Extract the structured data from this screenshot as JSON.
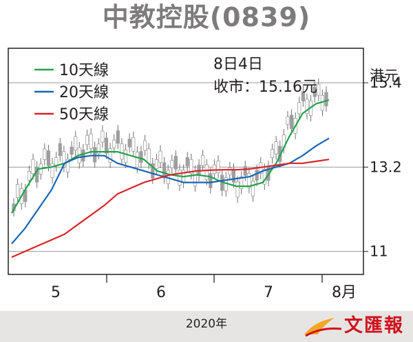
{
  "title": "中教控股(0839)",
  "annotation": {
    "date": "8日4日",
    "close": "收市：15.16元"
  },
  "unit": "港元",
  "footer_year": "2020年",
  "publisher": "文匯報",
  "colors": {
    "ma10": "#1fa34a",
    "ma20": "#1764b4",
    "ma50": "#d8232a",
    "up": "#f1a92e",
    "down": "#9e9e9e",
    "gridline": "#999999"
  },
  "chart_data": {
    "type": "line",
    "title": "中教控股(0839)",
    "ylabel": "港元",
    "xlabel": "2020年",
    "y_ticks": [
      11,
      13.2,
      15.4
    ],
    "ylim": [
      10.4,
      16.3
    ],
    "x_ticks": [
      "5",
      "6",
      "7",
      "8月"
    ],
    "grid": "horizontal",
    "legend_position": "top-left",
    "series": [
      {
        "name": "10天線",
        "color": "#1fa34a",
        "values": [
          12.0,
          12.6,
          13.15,
          13.2,
          13.3,
          13.5,
          13.6,
          13.6,
          13.6,
          13.5,
          13.4,
          13.1,
          13.0,
          12.95,
          13.0,
          12.95,
          12.8,
          12.7,
          12.7,
          12.8,
          13.3,
          14.0,
          14.6,
          14.85,
          14.95
        ]
      },
      {
        "name": "20天線",
        "color": "#1764b4",
        "values": [
          11.2,
          11.6,
          12.1,
          12.6,
          13.3,
          13.45,
          13.5,
          13.5,
          13.3,
          13.2,
          13.1,
          13.0,
          12.9,
          12.8,
          12.8,
          12.8,
          12.85,
          12.9,
          12.95,
          13.1,
          13.2,
          13.3,
          13.5,
          13.75,
          13.95
        ]
      },
      {
        "name": "50天線",
        "color": "#d8232a",
        "values": [
          10.85,
          11.0,
          11.15,
          11.3,
          11.45,
          11.7,
          11.95,
          12.2,
          12.5,
          12.65,
          12.8,
          12.9,
          13.0,
          13.05,
          13.1,
          13.12,
          13.13,
          13.13,
          13.15,
          13.2,
          13.25,
          13.3,
          13.3,
          13.35,
          13.4
        ]
      }
    ]
  }
}
